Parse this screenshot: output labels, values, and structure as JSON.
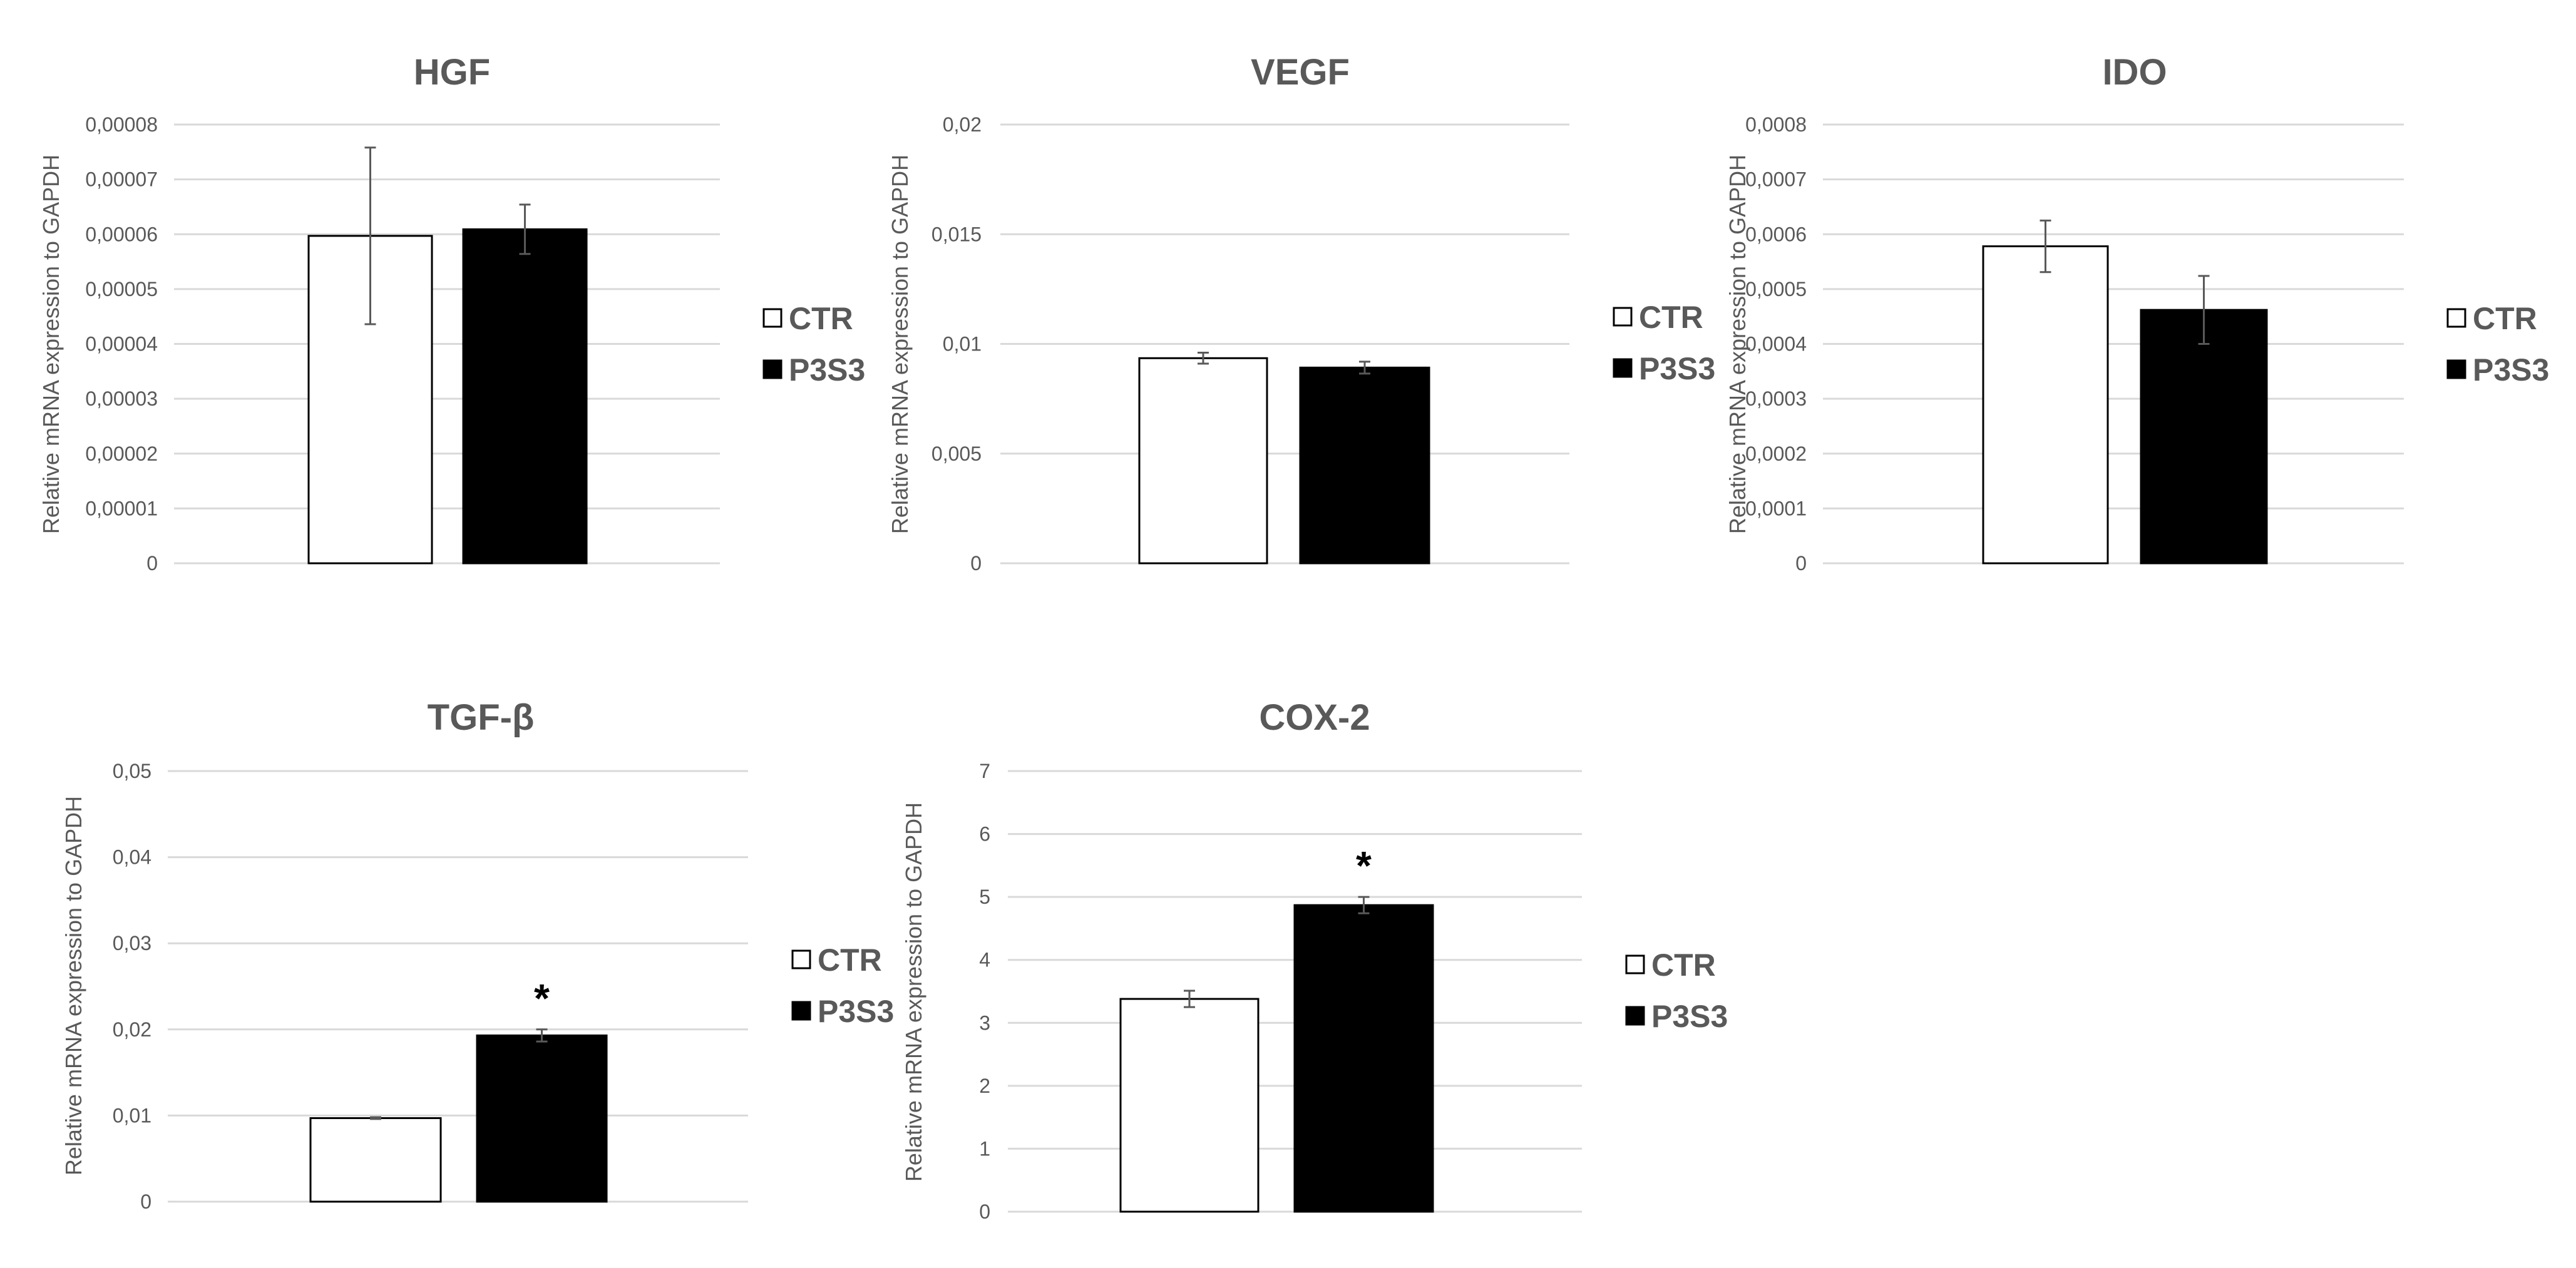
{
  "colors": {
    "ctr_fill": "#ffffff",
    "p3s3_fill": "#000000",
    "text": "#595959",
    "grid": "#d9d9d9"
  },
  "chart_data": [
    {
      "type": "bar",
      "title": "HGF",
      "ylabel": "Relative  mRNA expression to GAPDH",
      "ylim": [
        0,
        8e-05
      ],
      "ticks": [
        "0",
        "0,00001",
        "0,00002",
        "0,00003",
        "0,00004",
        "0,00005",
        "0,00006",
        "0,00007",
        "0,00008"
      ],
      "legend": [
        "CTR",
        "P3S3"
      ],
      "series": [
        {
          "name": "CTR",
          "values": [
            5.97e-05
          ],
          "error": [
            1.61e-05
          ]
        },
        {
          "name": "P3S3",
          "values": [
            6.09e-05
          ],
          "error": [
            4.5e-06
          ]
        }
      ],
      "significance": []
    },
    {
      "type": "bar",
      "title": "VEGF",
      "ylabel": "Relative  mRNA expression to GAPDH",
      "ylim": [
        0,
        0.02
      ],
      "ticks": [
        "0",
        "0,005",
        "0,01",
        "0,015",
        "0,02"
      ],
      "legend": [
        "CTR",
        "P3S3"
      ],
      "series": [
        {
          "name": "CTR",
          "values": [
            0.00935
          ],
          "error": [
            0.00025
          ]
        },
        {
          "name": "P3S3",
          "values": [
            0.00892
          ],
          "error": [
            0.00027
          ]
        }
      ],
      "significance": []
    },
    {
      "type": "bar",
      "title": "IDO",
      "ylabel": "Relative  mRNA expression to GAPDH",
      "ylim": [
        0,
        0.0008
      ],
      "ticks": [
        "0",
        "0,0001",
        "0,0002",
        "0,0003",
        "0,0004",
        "0,0005",
        "0,0006",
        "0,0007",
        "0,0008"
      ],
      "legend": [
        "CTR",
        "P3S3"
      ],
      "series": [
        {
          "name": "CTR",
          "values": [
            0.000578
          ],
          "error": [
            4.7e-05
          ]
        },
        {
          "name": "P3S3",
          "values": [
            0.000462
          ],
          "error": [
            6.2e-05
          ]
        }
      ],
      "significance": []
    },
    {
      "type": "bar",
      "title": "TGF-β",
      "ylabel": "Relative  mRNA expression to GAPDH",
      "ylim": [
        0,
        0.05
      ],
      "ticks": [
        "0",
        "0,01",
        "0,02",
        "0,03",
        "0,04",
        "0,05"
      ],
      "legend": [
        "CTR",
        "P3S3"
      ],
      "series": [
        {
          "name": "CTR",
          "values": [
            0.0097
          ],
          "error": [
            0.0001
          ]
        },
        {
          "name": "P3S3",
          "values": [
            0.0193
          ],
          "error": [
            0.0007
          ]
        }
      ],
      "significance": [
        "*"
      ]
    },
    {
      "type": "bar",
      "title": "COX-2",
      "ylabel": "Relative  mRNA expression to GAPDH",
      "ylim": [
        0,
        7
      ],
      "ticks": [
        "0",
        "1",
        "2",
        "3",
        "4",
        "5",
        "6",
        "7"
      ],
      "legend": [
        "CTR",
        "P3S3"
      ],
      "series": [
        {
          "name": "CTR",
          "values": [
            3.38
          ],
          "error": [
            0.13
          ]
        },
        {
          "name": "P3S3",
          "values": [
            4.87
          ],
          "error": [
            0.13
          ]
        }
      ],
      "significance": [
        "*"
      ]
    }
  ]
}
